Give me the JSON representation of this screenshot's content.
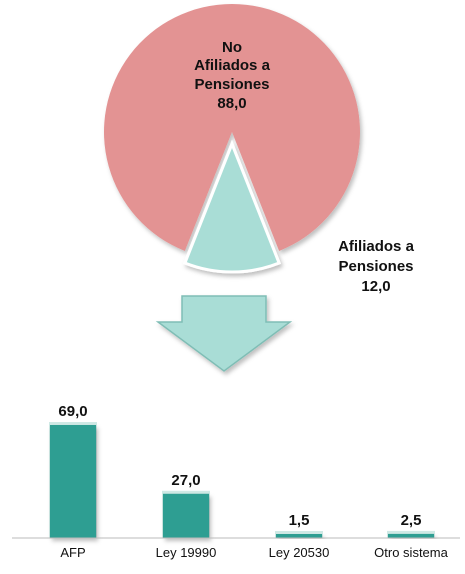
{
  "colors": {
    "pie_no_afiliados": "#E39393",
    "pie_afiliados": "#A9DDD6",
    "bar_fill": "#2E9E92",
    "arrow_fill": "#A9DDD6",
    "text": "#111111"
  },
  "chart_data": [
    {
      "type": "pie",
      "slices": [
        {
          "label_lines": [
            "No",
            "Afiliados a",
            "Pensiones"
          ],
          "value": 88.0,
          "value_text": "88,0"
        },
        {
          "label_lines": [
            "Afiliados a",
            "Pensiones"
          ],
          "value": 12.0,
          "value_text": "12,0"
        }
      ]
    },
    {
      "type": "bar",
      "categories": [
        "AFP",
        "Ley 19990",
        "Ley 20530",
        "Otro sistema"
      ],
      "values": [
        69.0,
        27.0,
        1.5,
        2.5
      ],
      "value_labels": [
        "69,0",
        "27,0",
        "1,5",
        "2,5"
      ],
      "ylim": [
        0,
        69.0
      ]
    }
  ],
  "arrow": {
    "icon": "down-arrow-icon"
  }
}
